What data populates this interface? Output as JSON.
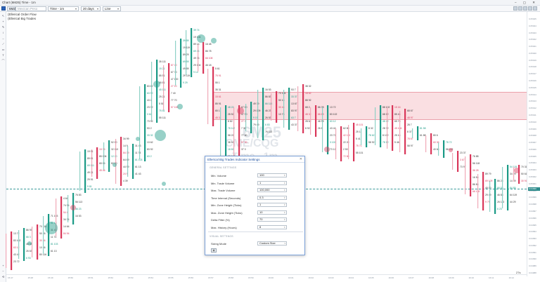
{
  "window": {
    "title": "Chart (6M25) Time - 1m",
    "controls": "– ▢ ✕"
  },
  "toolbar": {
    "symbol": "6M25",
    "symbol_desc": "Mexican Peso",
    "interval": "Time - 1m",
    "days": "20 days",
    "style": "Line"
  },
  "legend": [
    "(Ellerical Order Flow",
    "(Ellerical Big Trades"
  ],
  "watermark": {
    "symbol": "6M25",
    "sub": "CME/CQG",
    "interval": "Time - 1m"
  },
  "colors": {
    "up": "#1a9a86",
    "down": "#d9375a",
    "zone": "#ec8c96",
    "accent": "#2d8c8c"
  },
  "price_axis": {
    "ticks": [
      "0.05025",
      "0.05024",
      "0.05023",
      "0.05022",
      "0.05021",
      "0.05020",
      "0.05019",
      "0.05018",
      "0.05017",
      "0.05016",
      "0.05015",
      "0.05014",
      "0.05013",
      "0.05012",
      "0.05011",
      "0.05010",
      "0.05009",
      "0.05008",
      "0.05007",
      "0.05006",
      "0.05005",
      "0.05004",
      "0.05003",
      "0.05002",
      "0.05001",
      "0.05000",
      "0.04999",
      "0.04998",
      "0.04997",
      "0.04996",
      "0.04995",
      "0.04994",
      "0.04993",
      "0.04992",
      "0.04991",
      "0.04990",
      "0.04989",
      "0.04988"
    ],
    "current": "0.04999"
  },
  "time_axis": [
    "15:47",
    "15:48",
    "15:49",
    "15:50",
    "15:51",
    "15:52",
    "15:53",
    "15:54",
    "15:55",
    "15:56",
    "15:57",
    "15:58",
    "15:59",
    "16:00",
    "16:01",
    "16:02",
    "16:03",
    "16:04",
    "16:05",
    "16:06",
    "16:07",
    "16:08",
    "16:09",
    "16:10",
    "16:11",
    "16:12"
  ],
  "bar_count": "27s",
  "dialog": {
    "title": "Ellerical Big Trades Indicator Settings",
    "general_label": "GENERAL SETTINGS",
    "visual_label": "VISUAL SETTINGS",
    "fields": [
      {
        "label": "Min. Volume",
        "value": "100"
      },
      {
        "label": "Min. Trade Volume",
        "value": "1"
      },
      {
        "label": "Max. Trade Volume",
        "value": "100,000"
      },
      {
        "label": "Time Interval (Seconds)",
        "value": "0.3"
      },
      {
        "label": "Min. Zone Height (Ticks)",
        "value": "1"
      },
      {
        "label": "Max. Zone Height (Ticks)",
        "value": "10"
      },
      {
        "label": "Delta Filter (%)",
        "value": "70"
      },
      {
        "label": "Max. History (Hours)",
        "value": "8"
      }
    ],
    "sizing_label": "Sizing Mode",
    "sizing_value": "Custom Size"
  }
}
